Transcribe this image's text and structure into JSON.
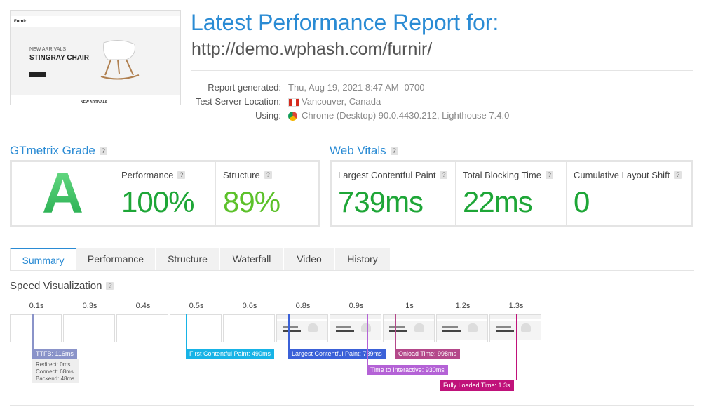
{
  "thumbnail": {
    "brand": "Furnir",
    "kicker": "NEW ARRIVALS",
    "headline": "STINGRAY CHAIR",
    "section": "NEW ARRIVALS"
  },
  "header": {
    "title": "Latest Performance Report for:",
    "url": "http://demo.wphash.com/furnir/"
  },
  "details": [
    {
      "label": "Report generated:",
      "value": "Thu, Aug 19, 2021 8:47 AM -0700"
    },
    {
      "label": "Test Server Location:",
      "value": "Vancouver, Canada"
    },
    {
      "label": "Using:",
      "value": "Chrome (Desktop) 90.0.4430.212, Lighthouse 7.4.0"
    }
  ],
  "help": "?",
  "grade": {
    "title": "GTmetrix Grade",
    "letter": "A",
    "metrics": [
      {
        "label": "Performance",
        "value": "100%"
      },
      {
        "label": "Structure",
        "value": "89%"
      }
    ]
  },
  "web_vitals": {
    "title": "Web Vitals",
    "metrics": [
      {
        "label": "Largest Contentful Paint",
        "value": "739ms"
      },
      {
        "label": "Total Blocking Time",
        "value": "22ms"
      },
      {
        "label": "Cumulative Layout Shift",
        "value": "0"
      }
    ]
  },
  "tabs": [
    "Summary",
    "Performance",
    "Structure",
    "Waterfall",
    "Video",
    "History"
  ],
  "speed_visualization": {
    "title": "Speed Visualization",
    "times": [
      "0.1s",
      "0.3s",
      "0.4s",
      "0.5s",
      "0.6s",
      "0.8s",
      "0.9s",
      "1s",
      "1.2s",
      "1.3s"
    ],
    "markers": [
      "TTFB: 116ms",
      "First Contentful Paint: 490ms",
      "Largest Contentful Paint: 739ms",
      "Onload Time: 998ms",
      "Time to Interactive: 930ms",
      "Fully Loaded Time: 1.3s"
    ],
    "ttfb_breakdown": [
      "Redirect: 0ms",
      "Connect: 68ms",
      "Backend: 48ms"
    ]
  }
}
